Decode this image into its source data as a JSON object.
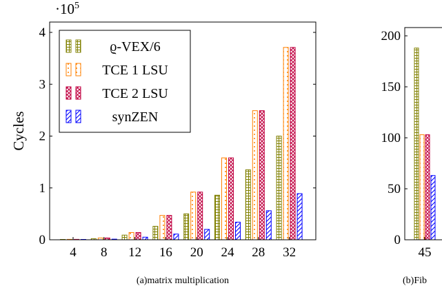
{
  "chart_data": [
    {
      "type": "bar",
      "caption": "(a)matrix multiplication",
      "ylabel": "Cycles",
      "y_scale_label": "·10",
      "y_scale_exp": "5",
      "ylim": [
        0,
        4.2
      ],
      "yticks": [
        0,
        1,
        2,
        3,
        4
      ],
      "ytick_labels": [
        "0",
        "1",
        "2",
        "3",
        "4"
      ],
      "categories": [
        "4",
        "8",
        "12",
        "16",
        "20",
        "24",
        "28",
        "32"
      ],
      "legend_position": "top-left",
      "series": [
        {
          "name": "ϱ-VEX/6",
          "color": "#808000",
          "pattern": "grid",
          "values": [
            0.003,
            0.022,
            0.09,
            0.26,
            0.5,
            0.86,
            1.35,
            2.0
          ]
        },
        {
          "name": "TCE 1 LSU",
          "color": "#ff8000",
          "pattern": "dots",
          "values": [
            0.008,
            0.035,
            0.14,
            0.47,
            0.92,
            1.58,
            2.49,
            3.71
          ]
        },
        {
          "name": "TCE 2 LSU",
          "color": "#c00040",
          "pattern": "crosshatch",
          "values": [
            0.008,
            0.035,
            0.14,
            0.47,
            0.92,
            1.58,
            2.49,
            3.71
          ]
        },
        {
          "name": "synZEN",
          "color": "#0000ff",
          "pattern": "diag",
          "values": [
            0.002,
            0.012,
            0.05,
            0.11,
            0.2,
            0.34,
            0.56,
            0.89
          ]
        }
      ]
    },
    {
      "type": "bar",
      "caption": "(b)Fib",
      "ylim": [
        0,
        205
      ],
      "yticks": [
        0,
        50,
        100,
        150,
        200
      ],
      "ytick_labels": [
        "0",
        "50",
        "100",
        "150",
        "200"
      ],
      "categories": [
        "45"
      ],
      "series": [
        {
          "name": "ϱ-VEX/6",
          "color": "#808000",
          "pattern": "grid",
          "values": [
            188
          ]
        },
        {
          "name": "TCE 1 LSU",
          "color": "#ff8000",
          "pattern": "dots",
          "values": [
            103
          ]
        },
        {
          "name": "TCE 2 LSU",
          "color": "#c00040",
          "pattern": "crosshatch",
          "values": [
            103
          ]
        },
        {
          "name": "synZEN",
          "color": "#0000ff",
          "pattern": "diag",
          "values": [
            63
          ]
        }
      ]
    }
  ]
}
